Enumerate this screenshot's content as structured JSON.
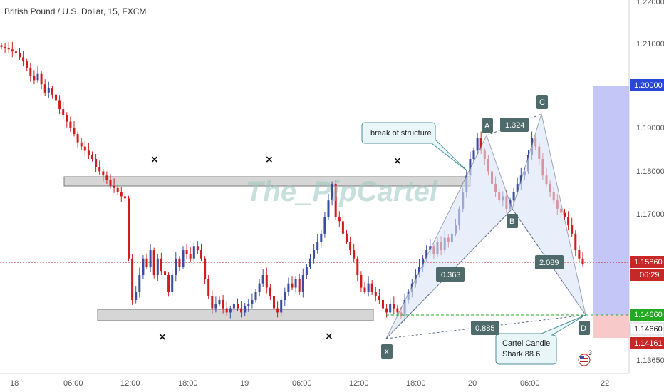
{
  "header": {
    "title": "British Pound / U.S. Dollar, 15, FXCM"
  },
  "watermark": "The_PipCartel",
  "colors": {
    "up": "#3c4ca0",
    "down": "#d01c1c",
    "pattern_fill": "#d6e4f7",
    "pattern_line": "#5a6a86",
    "label_bg": "#4e6a6a",
    "zone_fill": "#d0d0d0",
    "target_zone": "#b9bcf5",
    "stop_zone": "#f7c3c3",
    "current_price_line": "#c02020",
    "d_level_line": "#22aa22"
  },
  "chart_data": {
    "type": "candlestick",
    "symbol": "British Pound / U.S. Dollar",
    "interval": "15",
    "source": "FXCM",
    "ylim": [
      1.1323,
      1.2223
    ],
    "y_ticks": [
      "1.22000",
      "1.21000",
      "1.19000",
      "1.18000",
      "1.17000",
      "1.14660",
      "1.13650"
    ],
    "x_ticks": [
      "18",
      "06:00",
      "12:00",
      "18:00",
      "19",
      "06:00",
      "12:00",
      "18:00",
      "20",
      "06:00",
      "22"
    ],
    "price_tags": {
      "target": "1.20000",
      "d_level": "1.14660",
      "d_level_2": "1.14660",
      "last_price": "1.15860",
      "countdown": "06:29",
      "stop": "1.14161"
    },
    "harmonic_pattern": {
      "name": "Shark",
      "points": [
        {
          "label": "X",
          "price": 1.149
        },
        {
          "label": "A",
          "price": 1.189
        },
        {
          "label": "B",
          "price": 1.1712
        },
        {
          "label": "C",
          "price": 1.1937
        },
        {
          "label": "D",
          "price": 1.1466
        }
      ],
      "ratios": [
        "1.324",
        "0.363",
        "2.089",
        "0.885"
      ]
    },
    "zones": [
      {
        "name": "resistance",
        "top": 1.1787,
        "bottom": 1.1767
      },
      {
        "name": "support",
        "top": 1.1472,
        "bottom": 1.1452
      }
    ],
    "annotations": {
      "callout_1": "break of structure",
      "callout_2_line1": "Cartel Candle",
      "callout_2_line2": "Shark 88.6",
      "x_marks": [
        "×",
        "×",
        "×",
        "×",
        "×"
      ],
      "event_count": "3"
    },
    "candles_close": [
      1.211,
      1.2108,
      1.2104,
      1.2099,
      1.2095,
      1.2085,
      1.2075,
      1.206,
      1.204,
      1.203,
      1.2045,
      1.202,
      1.2,
      1.201,
      1.1995,
      1.198,
      1.196,
      1.1945,
      1.193,
      1.1915,
      1.19,
      1.188,
      1.187,
      1.186,
      1.185,
      1.184,
      1.182,
      1.181,
      1.18,
      1.179,
      1.1775,
      1.177,
      1.176,
      1.175,
      1.1745,
      1.16,
      1.15,
      1.152,
      1.156,
      1.16,
      1.158,
      1.162,
      1.156,
      1.16,
      1.157,
      1.156,
      1.152,
      1.156,
      1.16,
      1.158,
      1.162,
      1.161,
      1.16,
      1.163,
      1.162,
      1.16,
      1.155,
      1.151,
      1.148,
      1.149,
      1.15,
      1.148,
      1.147,
      1.148,
      1.149,
      1.148,
      1.147,
      1.1485,
      1.149,
      1.15,
      1.152,
      1.154,
      1.156,
      1.153,
      1.151,
      1.148,
      1.147,
      1.15,
      1.152,
      1.154,
      1.153,
      1.155,
      1.152,
      1.156,
      1.158,
      1.16,
      1.162,
      1.164,
      1.166,
      1.17,
      1.174,
      1.178,
      1.17,
      1.169,
      1.166,
      1.164,
      1.162,
      1.16,
      1.156,
      1.153,
      1.152,
      1.154,
      1.152,
      1.151,
      1.15,
      1.148,
      1.147,
      1.149,
      1.148,
      1.147,
      1.146,
      1.15,
      1.152,
      1.154,
      1.156,
      1.158,
      1.16,
      1.162,
      1.163,
      1.161,
      1.164,
      1.162,
      1.165,
      1.164,
      1.166,
      1.168,
      1.172,
      1.176,
      1.18,
      1.184,
      1.186,
      1.189,
      1.186,
      1.184,
      1.181,
      1.178,
      1.176,
      1.174,
      1.175,
      1.172,
      1.174,
      1.176,
      1.178,
      1.18,
      1.181,
      1.185,
      1.189,
      1.187,
      1.184,
      1.18,
      1.178,
      1.176,
      1.174,
      1.172,
      1.171,
      1.17,
      1.168,
      1.166,
      1.162,
      1.16,
      1.1586
    ]
  }
}
